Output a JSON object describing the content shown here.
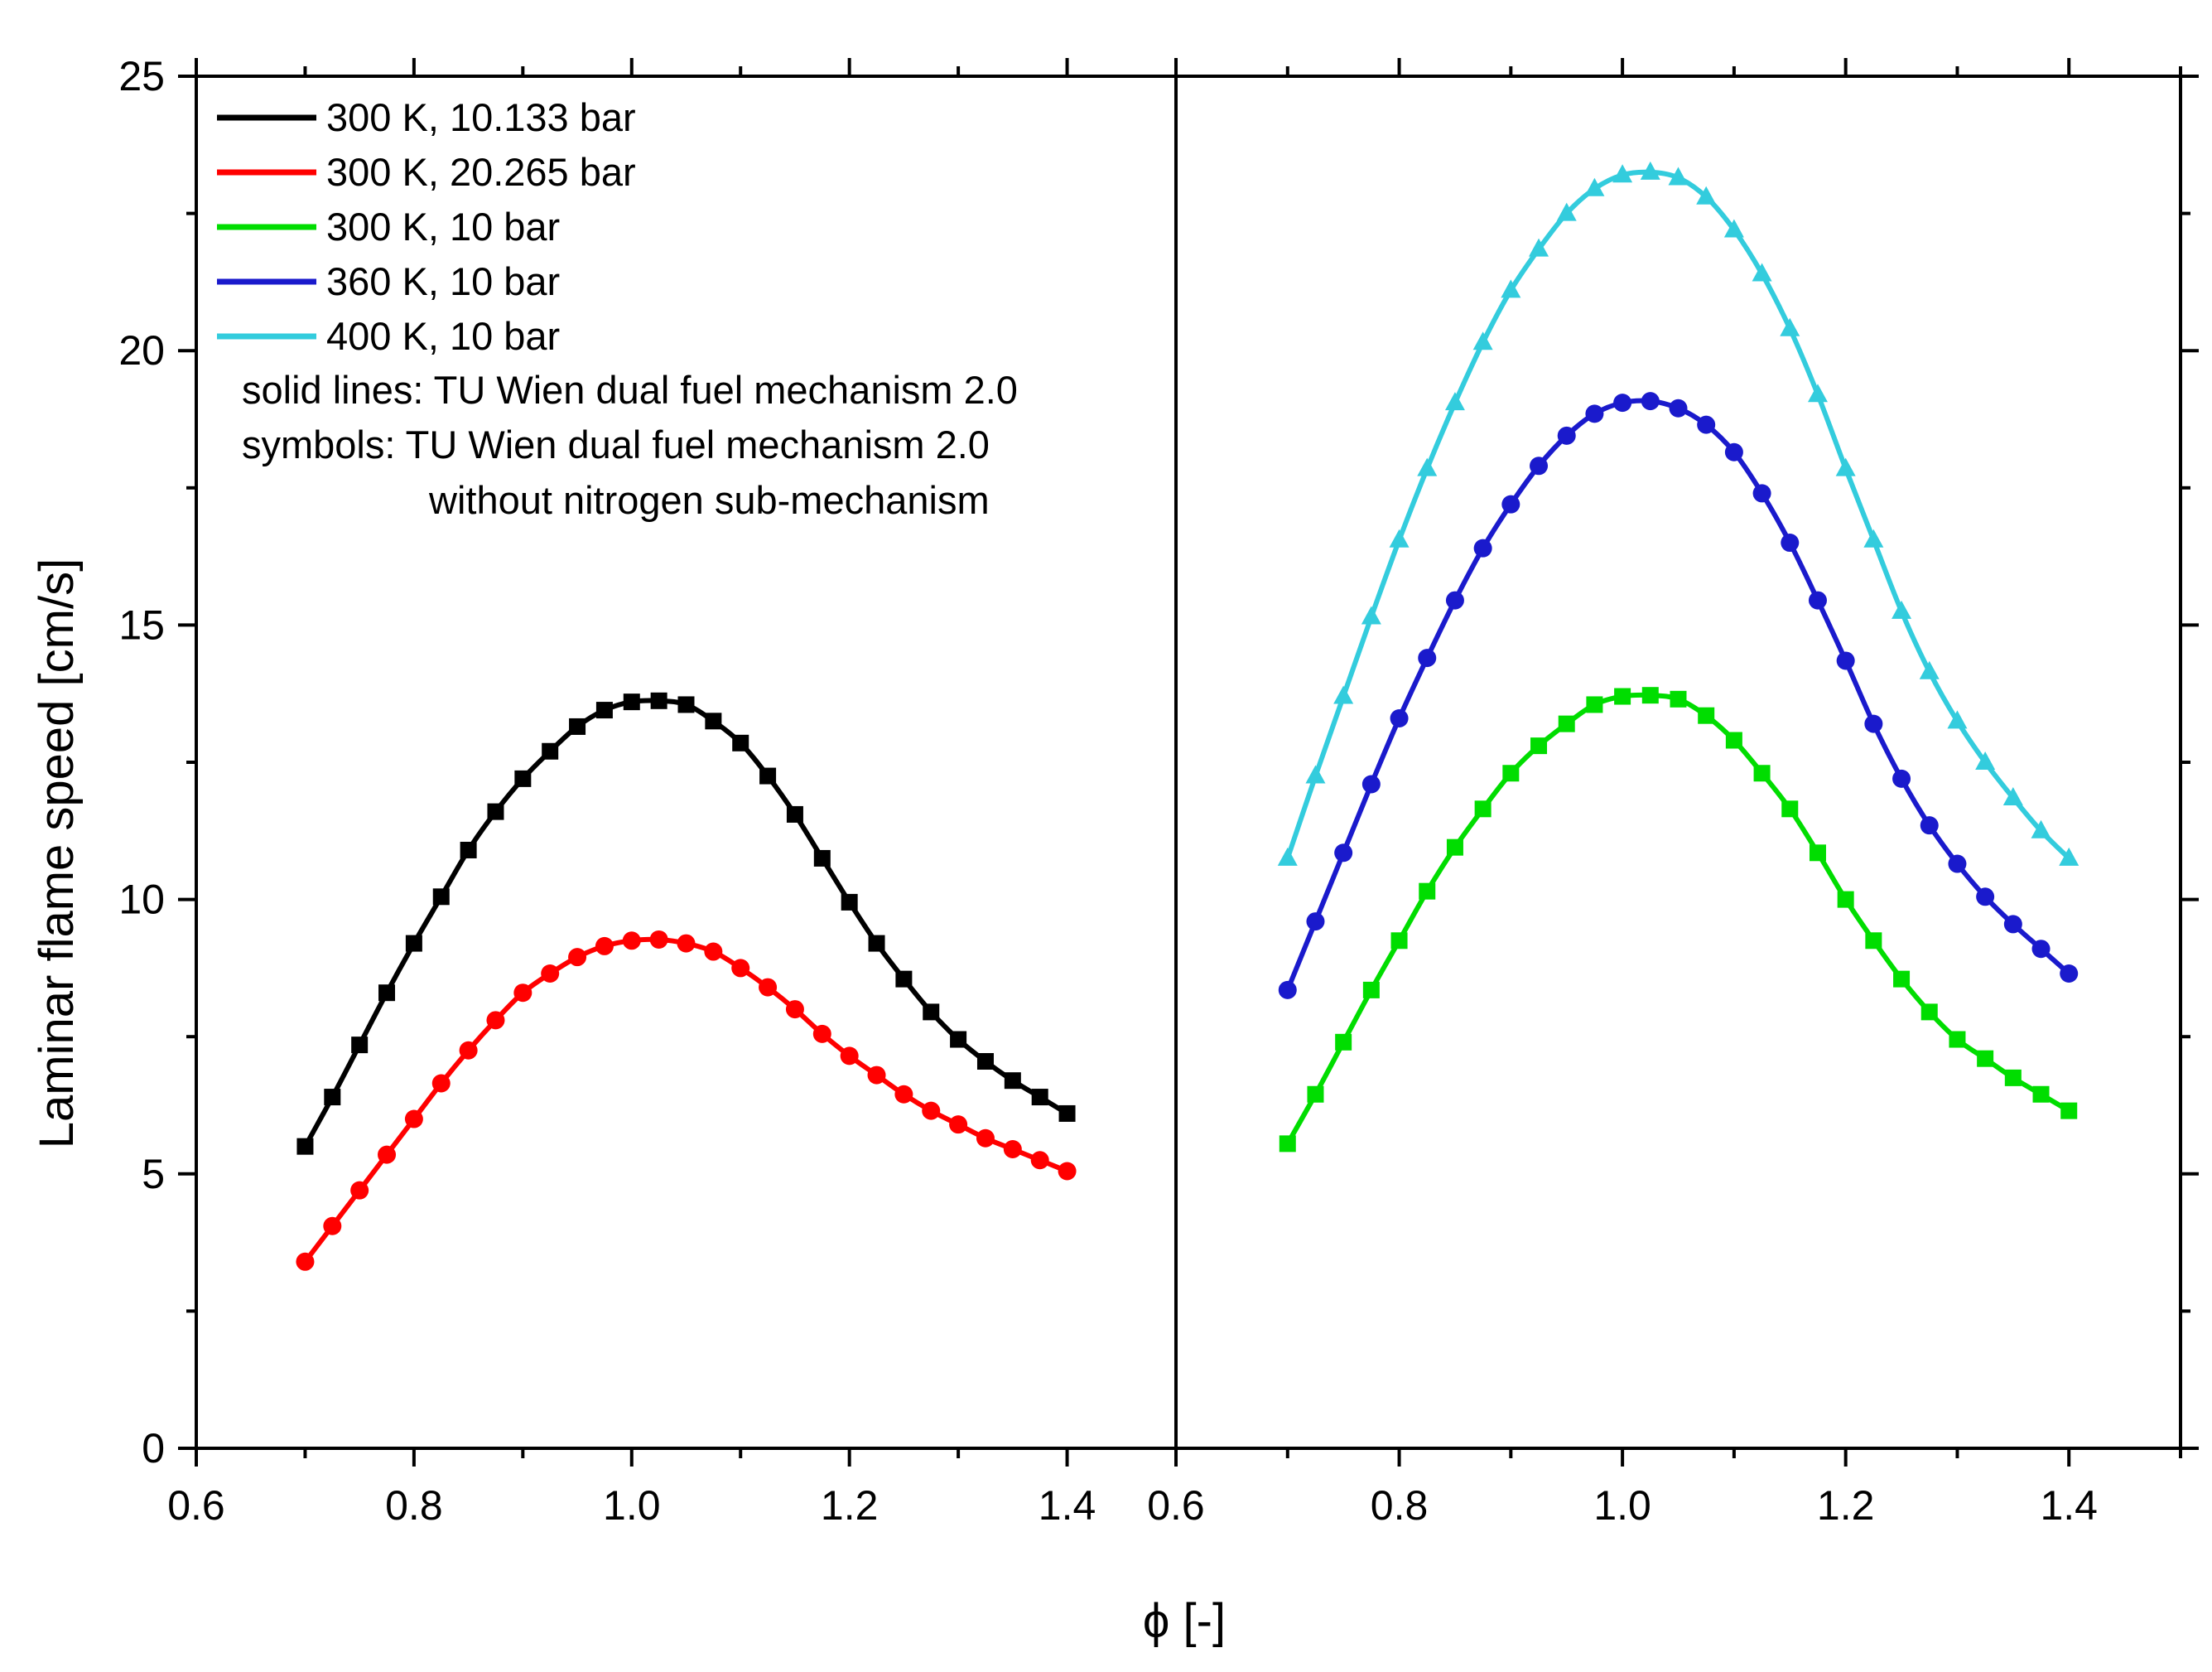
{
  "chart_data": {
    "type": "line",
    "ylabel": "Laminar flame speed [cm/s]",
    "xlabel": "ϕ [-]",
    "ylim": [
      0,
      25
    ],
    "yticks": [
      "0",
      "5",
      "10",
      "15",
      "20",
      "25"
    ],
    "panels": [
      {
        "xlim": [
          0.6,
          1.5
        ],
        "xticks": [
          "0.6",
          "0.8",
          "1.0",
          "1.2",
          "1.4"
        ],
        "series": [
          "s300_10133",
          "s300_20265"
        ]
      },
      {
        "xlim": [
          0.6,
          1.5
        ],
        "xticks": [
          "0.6",
          "0.8",
          "1.0",
          "1.2",
          "1.4"
        ],
        "series": [
          "s300_10",
          "s360_10",
          "s400_10"
        ]
      }
    ],
    "x": [
      0.7,
      0.725,
      0.75,
      0.775,
      0.8,
      0.825,
      0.85,
      0.875,
      0.9,
      0.925,
      0.95,
      0.975,
      1.0,
      1.025,
      1.05,
      1.075,
      1.1,
      1.125,
      1.15,
      1.175,
      1.2,
      1.225,
      1.25,
      1.275,
      1.3,
      1.325,
      1.35,
      1.375,
      1.4
    ],
    "series": [
      {
        "id": "s300_10133",
        "name": "300 K, 10.133 bar",
        "color": "#000000",
        "marker": "square",
        "values": [
          5.5,
          6.4,
          7.35,
          8.3,
          9.2,
          10.05,
          10.9,
          11.6,
          12.2,
          12.7,
          13.15,
          13.45,
          13.6,
          13.62,
          13.55,
          13.25,
          12.85,
          12.25,
          11.55,
          10.75,
          9.95,
          9.2,
          8.55,
          7.95,
          7.45,
          7.05,
          6.7,
          6.4,
          6.1
        ]
      },
      {
        "id": "s300_20265",
        "name": "300 K, 20.265 bar",
        "color": "#ff0000",
        "marker": "circle",
        "values": [
          3.4,
          4.05,
          4.7,
          5.35,
          6.0,
          6.65,
          7.25,
          7.8,
          8.3,
          8.65,
          8.95,
          9.15,
          9.25,
          9.27,
          9.2,
          9.05,
          8.75,
          8.4,
          8.0,
          7.55,
          7.15,
          6.8,
          6.45,
          6.15,
          5.9,
          5.65,
          5.45,
          5.25,
          5.05
        ]
      },
      {
        "id": "s300_10",
        "name": "300 K, 10 bar",
        "color": "#00dd00",
        "marker": "square",
        "values": [
          5.55,
          6.45,
          7.4,
          8.35,
          9.25,
          10.15,
          10.95,
          11.65,
          12.3,
          12.8,
          13.2,
          13.55,
          13.7,
          13.72,
          13.65,
          13.35,
          12.9,
          12.3,
          11.65,
          10.85,
          10.0,
          9.25,
          8.55,
          7.95,
          7.45,
          7.1,
          6.75,
          6.45,
          6.15
        ]
      },
      {
        "id": "s360_10",
        "name": "360 K, 10 bar",
        "color": "#1a1acc",
        "marker": "circle",
        "values": [
          8.35,
          9.6,
          10.85,
          12.1,
          13.3,
          14.4,
          15.45,
          16.4,
          17.2,
          17.9,
          18.45,
          18.85,
          19.05,
          19.08,
          18.95,
          18.65,
          18.15,
          17.4,
          16.5,
          15.45,
          14.35,
          13.2,
          12.2,
          11.35,
          10.65,
          10.05,
          9.55,
          9.1,
          8.65
        ]
      },
      {
        "id": "s400_10",
        "name": "400 K, 10 bar",
        "color": "#33ccdd",
        "marker": "triangle",
        "values": [
          10.75,
          12.25,
          13.7,
          15.15,
          16.55,
          17.85,
          19.05,
          20.15,
          21.1,
          21.85,
          22.5,
          22.95,
          23.2,
          23.25,
          23.15,
          22.8,
          22.2,
          21.4,
          20.4,
          19.2,
          17.85,
          16.55,
          15.25,
          14.15,
          13.25,
          12.5,
          11.85,
          11.25,
          10.75
        ]
      }
    ],
    "legend": {
      "position": "top-left",
      "entries": [
        "300 K, 10.133 bar",
        "300 K, 20.265 bar",
        "300 K, 10 bar",
        "360 K, 10 bar",
        "400 K, 10 bar"
      ],
      "note_line1": "solid lines: TU Wien dual fuel mechanism 2.0",
      "note_line2": "symbols: TU Wien dual fuel mechanism 2.0",
      "note_line3": "without nitrogen sub-mechanism"
    }
  }
}
